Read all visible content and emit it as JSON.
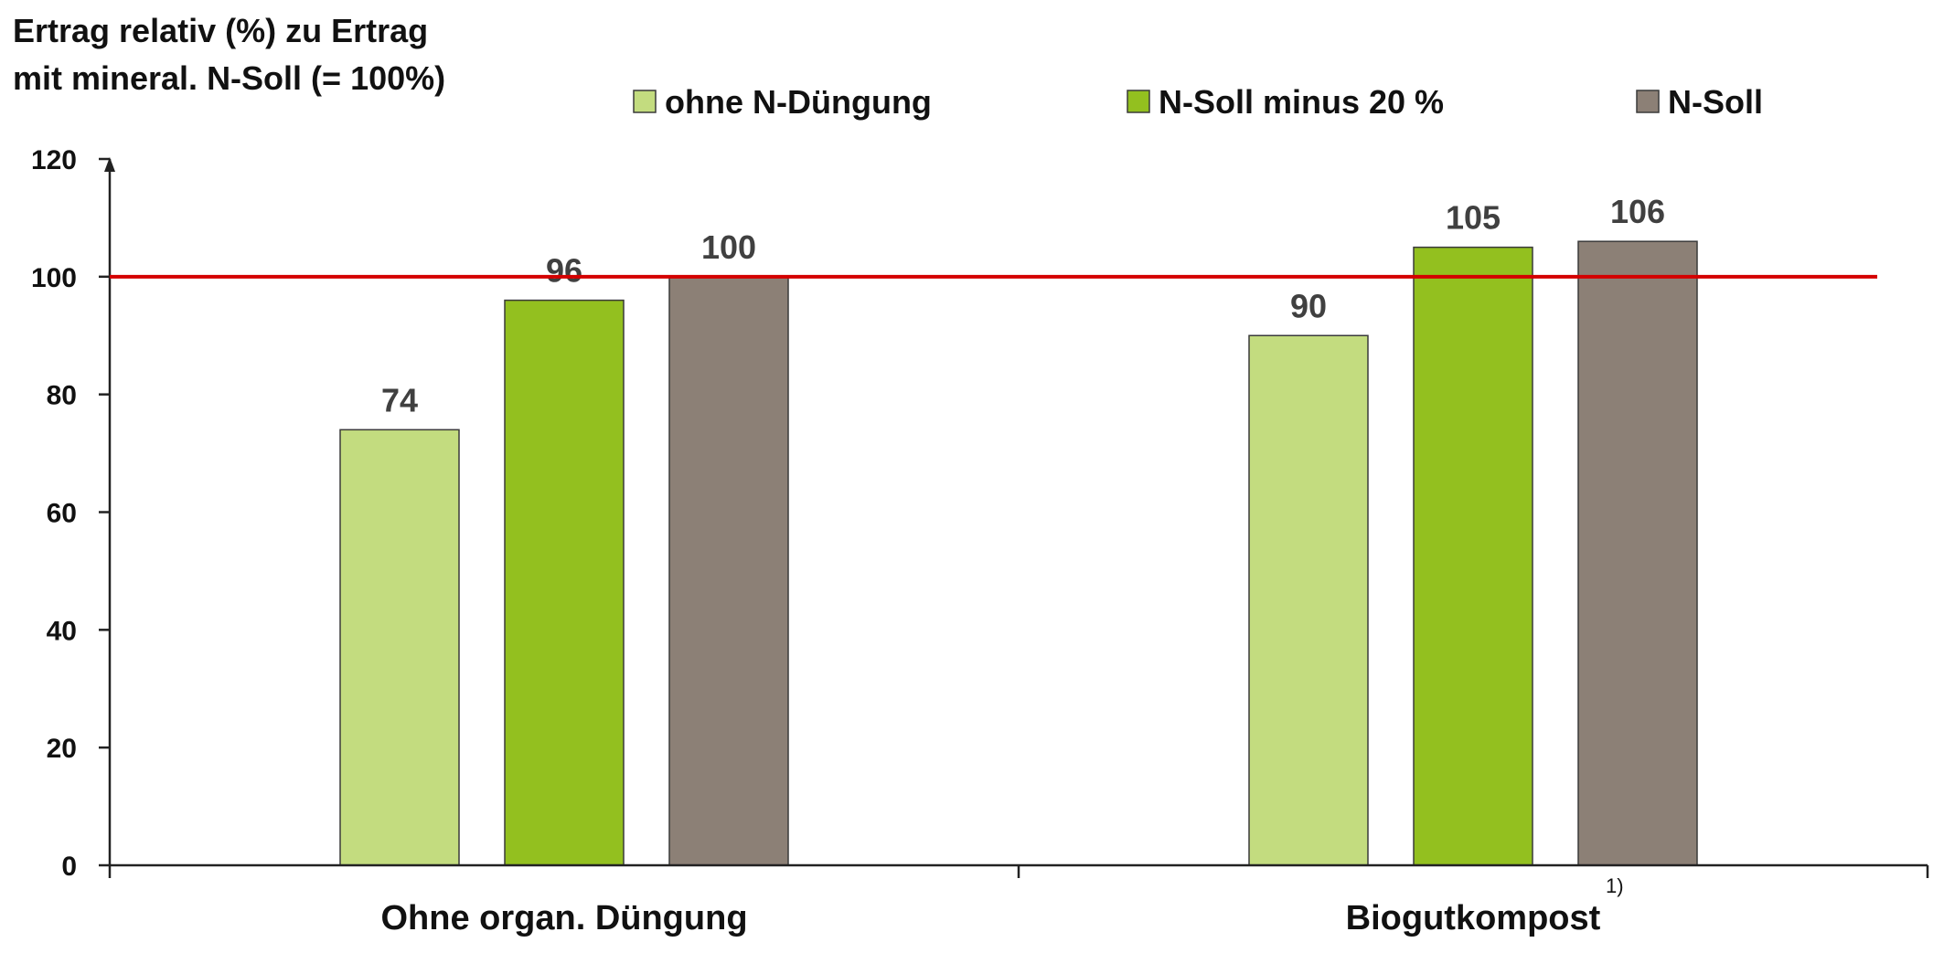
{
  "chart_data": {
    "type": "bar",
    "title": "",
    "ylabel_lines": [
      "Ertrag relativ (%) zu Ertrag",
      "mit mineral. N-Soll (= 100%)"
    ],
    "xlabel": "",
    "ylim": [
      0,
      120
    ],
    "yticks": [
      0,
      20,
      40,
      60,
      80,
      100,
      120
    ],
    "categories": [
      "Ohne organ. Düngung",
      "Biogutkompost"
    ],
    "series": [
      {
        "name": "ohne N-Düngung",
        "color": "#c3dc7f",
        "values": [
          74,
          90
        ]
      },
      {
        "name": "N-Soll minus 20 %",
        "color": "#93c01f",
        "values": [
          96,
          105
        ]
      },
      {
        "name": "N-Soll",
        "color": "#8c8076",
        "values": [
          100,
          106
        ]
      }
    ],
    "reference_line": {
      "value": 100,
      "color": "#d40000"
    },
    "footnote": "1)",
    "legend_position": "top",
    "grid": false,
    "data_label_color": "#404040"
  }
}
